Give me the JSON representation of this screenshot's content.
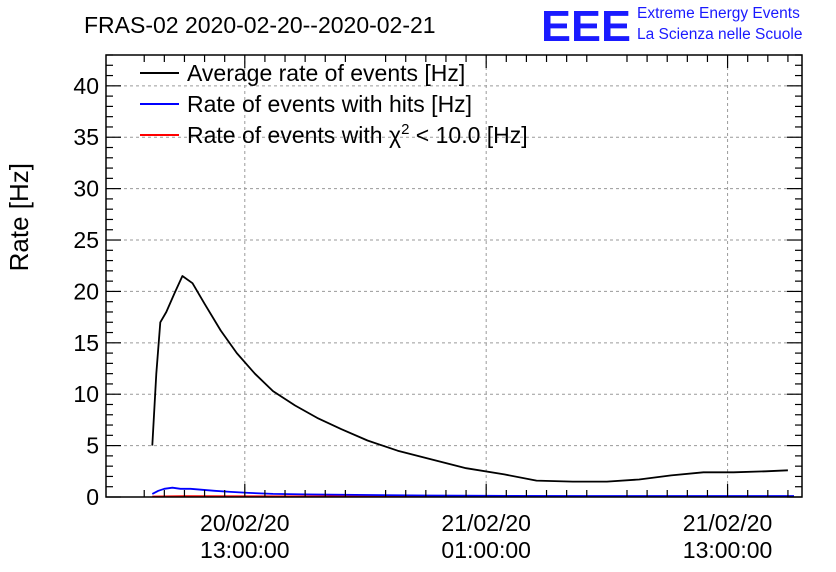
{
  "chart_data": {
    "type": "line",
    "title": "FRAS-02 2020-02-20--2020-02-21",
    "ylabel": "Rate [Hz]",
    "xlabel": "",
    "ylim": [
      0,
      43
    ],
    "yticks": [
      0,
      5,
      10,
      15,
      20,
      25,
      30,
      35,
      40
    ],
    "x_unit": "hours since 2020-02-20 00:00:00",
    "xlim": [
      6.1,
      40.7
    ],
    "xticks": [
      {
        "value": 13,
        "label_date": "20/02/20",
        "label_time": "13:00:00"
      },
      {
        "value": 25,
        "label_date": "21/02/20",
        "label_time": "01:00:00"
      },
      {
        "value": 37,
        "label_date": "21/02/20",
        "label_time": "13:00:00"
      }
    ],
    "grid": true,
    "legend_position": "top-left",
    "series": [
      {
        "name": "Average rate of events [Hz]",
        "color": "#000000",
        "x": [
          8.4,
          8.6,
          8.8,
          9.1,
          9.5,
          9.9,
          10.4,
          11.0,
          11.8,
          12.6,
          13.5,
          14.4,
          15.5,
          16.6,
          17.8,
          19.1,
          20.6,
          22.2,
          24.0,
          25.9,
          27.5,
          29.3,
          31.0,
          32.6,
          34.2,
          35.8,
          37.3,
          38.9,
          40.0
        ],
        "y": [
          5.0,
          12.0,
          17.0,
          18.0,
          19.8,
          21.5,
          20.8,
          18.8,
          16.2,
          14.0,
          12.0,
          10.3,
          8.9,
          7.7,
          6.6,
          5.5,
          4.5,
          3.7,
          2.8,
          2.2,
          1.6,
          1.5,
          1.5,
          1.7,
          2.1,
          2.4,
          2.4,
          2.5,
          2.6
        ]
      },
      {
        "name": "Rate of events with hits [Hz]",
        "color": "#0000ff",
        "x": [
          8.4,
          8.7,
          9.0,
          9.4,
          9.8,
          10.3,
          10.9,
          11.5,
          12.3,
          13.2,
          14.4,
          16.0,
          18.5,
          22.0,
          25.0,
          30.0,
          34.0,
          38.0,
          40.3
        ],
        "y": [
          0.3,
          0.6,
          0.8,
          0.9,
          0.8,
          0.8,
          0.7,
          0.6,
          0.5,
          0.4,
          0.3,
          0.25,
          0.2,
          0.15,
          0.12,
          0.1,
          0.1,
          0.1,
          0.1
        ]
      },
      {
        "name": "Rate of events with χ² < 10.0 [Hz]",
        "color": "#ff0000",
        "x": [
          8.4,
          10.0,
          13.0,
          17.0,
          21.0,
          25.0,
          29.0,
          33.0,
          37.0,
          40.3
        ],
        "y": [
          0.05,
          0.08,
          0.07,
          0.06,
          0.05,
          0.05,
          0.04,
          0.04,
          0.05,
          0.05
        ]
      }
    ],
    "legend": [
      {
        "pre": "Average rate of events [Hz]",
        "sup": "",
        "post": ""
      },
      {
        "pre": "Rate of events with hits [Hz]",
        "sup": "",
        "post": ""
      },
      {
        "pre": "Rate of events with χ",
        "sup": "2",
        "post": " < 10.0 [Hz]"
      }
    ]
  },
  "logo": {
    "mark": "EEE",
    "line1": "Extreme Energy Events",
    "line2": "La Scienza nelle Scuole",
    "color": "#1a1aff"
  }
}
